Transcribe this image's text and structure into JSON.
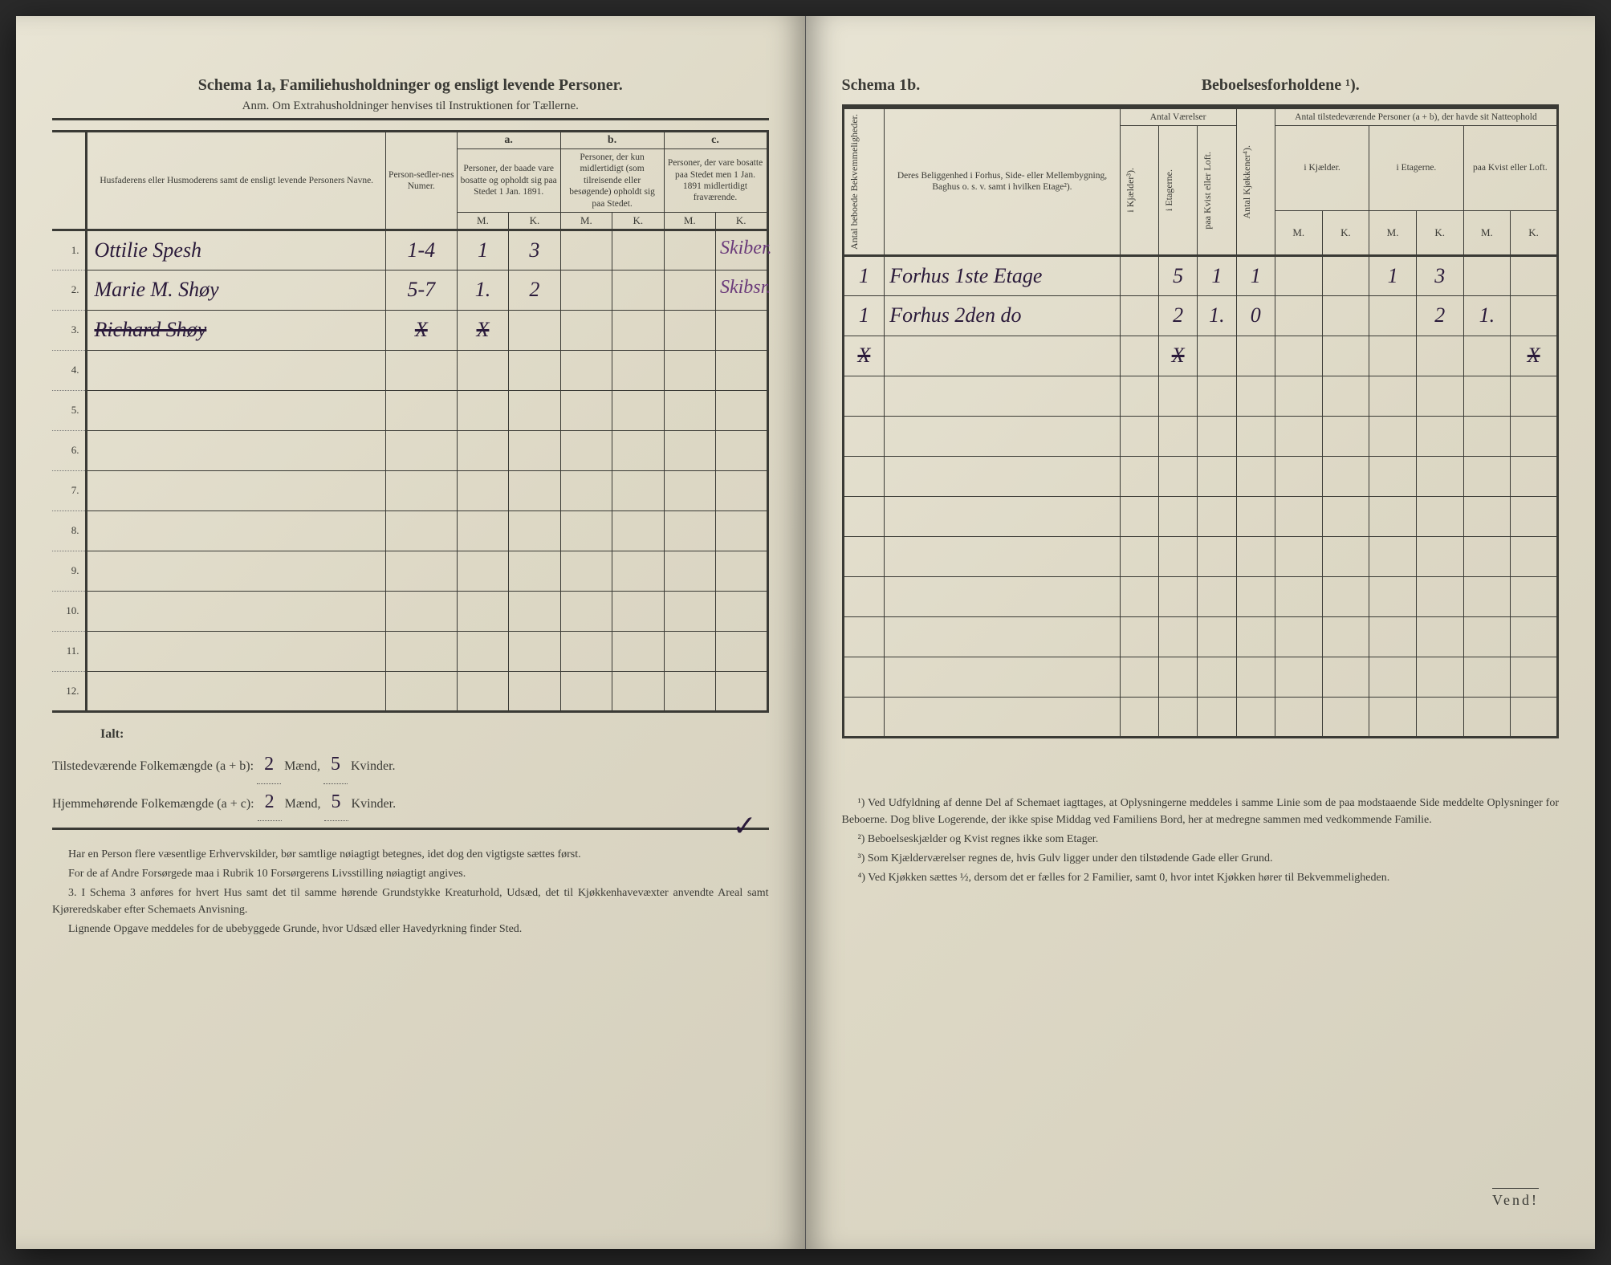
{
  "left": {
    "title": "Schema 1a, Familiehusholdninger og ensligt levende Personer.",
    "subtitle": "Anm. Om Extrahusholdninger henvises til Instruktionen for Tællerne.",
    "headers": {
      "names": "Husfaderens eller Husmoderens samt de ensligt levende Personers Navne.",
      "persNum": "Person-sedler-nes Numer.",
      "a_label": "a.",
      "a_text": "Personer, der baade vare bosatte og opholdt sig paa Stedet 1 Jan. 1891.",
      "b_label": "b.",
      "b_text": "Personer, der kun midlertidigt (som tilreisende eller besøgende) opholdt sig paa Stedet.",
      "c_label": "c.",
      "c_text": "Personer, der vare bosatte paa Stedet men 1 Jan. 1891 midlertidigt fraværende.",
      "M": "M.",
      "K": "K."
    },
    "rows": [
      {
        "n": "1.",
        "name": "Ottilie Spesh",
        "num": "1-4",
        "aM": "1",
        "aK": "3",
        "bM": "",
        "bK": "",
        "cM": "",
        "cK": "",
        "note": "Skiber.",
        "struck": false
      },
      {
        "n": "2.",
        "name": "Marie M. Shøy",
        "num": "5-7",
        "aM": "1.",
        "aK": "2",
        "bM": "",
        "bK": "",
        "cM": "",
        "cK": "",
        "note": "Skibsr.",
        "struck": false
      },
      {
        "n": "3.",
        "name": "Richard Shøy",
        "num": "X",
        "aM": "X",
        "aK": "",
        "bM": "",
        "bK": "",
        "cM": "",
        "cK": "",
        "note": "",
        "struck": true
      },
      {
        "n": "4.",
        "name": "",
        "num": "",
        "aM": "",
        "aK": "",
        "bM": "",
        "bK": "",
        "cM": "",
        "cK": "",
        "note": "",
        "struck": false
      },
      {
        "n": "5.",
        "name": "",
        "num": "",
        "aM": "",
        "aK": "",
        "bM": "",
        "bK": "",
        "cM": "",
        "cK": "",
        "note": "",
        "struck": false
      },
      {
        "n": "6.",
        "name": "",
        "num": "",
        "aM": "",
        "aK": "",
        "bM": "",
        "bK": "",
        "cM": "",
        "cK": "",
        "note": "",
        "struck": false
      },
      {
        "n": "7.",
        "name": "",
        "num": "",
        "aM": "",
        "aK": "",
        "bM": "",
        "bK": "",
        "cM": "",
        "cK": "",
        "note": "",
        "struck": false
      },
      {
        "n": "8.",
        "name": "",
        "num": "",
        "aM": "",
        "aK": "",
        "bM": "",
        "bK": "",
        "cM": "",
        "cK": "",
        "note": "",
        "struck": false
      },
      {
        "n": "9.",
        "name": "",
        "num": "",
        "aM": "",
        "aK": "",
        "bM": "",
        "bK": "",
        "cM": "",
        "cK": "",
        "note": "",
        "struck": false
      },
      {
        "n": "10.",
        "name": "",
        "num": "",
        "aM": "",
        "aK": "",
        "bM": "",
        "bK": "",
        "cM": "",
        "cK": "",
        "note": "",
        "struck": false
      },
      {
        "n": "11.",
        "name": "",
        "num": "",
        "aM": "",
        "aK": "",
        "bM": "",
        "bK": "",
        "cM": "",
        "cK": "",
        "note": "",
        "struck": false
      },
      {
        "n": "12.",
        "name": "",
        "num": "",
        "aM": "",
        "aK": "",
        "bM": "",
        "bK": "",
        "cM": "",
        "cK": "",
        "note": "",
        "struck": false
      }
    ],
    "summary": {
      "ialt": "Ialt:",
      "line1_label": "Tilstedeværende Folkemængde (a + b):",
      "line1_m": "2",
      "line1_mLabel": "Mænd,",
      "line1_k": "5",
      "line1_kLabel": "Kvinder.",
      "line2_label": "Hjemmehørende Folkemængde (a + c):",
      "line2_m": "2",
      "line2_mLabel": "Mænd,",
      "line2_k": "5",
      "line2_kLabel": "Kvinder."
    },
    "footnotes": [
      "Har en Person flere væsentlige Erhvervskilder, bør samtlige nøiagtigt betegnes, idet dog den vigtigste sættes først.",
      "For de af Andre Forsørgede maa i Rubrik 10 Forsørgerens Livsstilling nøiagtigt angives.",
      "3. I Schema 3 anføres for hvert Hus samt det til samme hørende Grundstykke Kreaturhold, Udsæd, det til Kjøkkenhavevæxter anvendte Areal samt Kjøreredskaber efter Schemaets Anvisning.",
      "Lignende Opgave meddeles for de ubebyggede Grunde, hvor Udsæd eller Havedyrkning finder Sted."
    ]
  },
  "right": {
    "title_a": "Schema 1b.",
    "title_b": "Beboelsesforholdene ¹).",
    "headers": {
      "antalBekv": "Antal beboede Bekvemmeligheder.",
      "beligg": "Deres Beliggenhed i Forhus, Side- eller Mellembygning, Baghus o. s. v. samt i hvilken Etage²).",
      "antalVaer": "Antal Værelser",
      "iKjaelder": "i Kjælder³).",
      "iEtagerne": "i Etagerne.",
      "paaKvist": "paa Kvist eller Loft.",
      "antalKjok": "Antal Kjøkkener⁴).",
      "antalTilst": "Antal tilstedeværende Personer (a + b), der havde sit Natteophold",
      "iKjaelder2": "i Kjælder.",
      "iEtagerne2": "i Etagerne.",
      "paaKvist2": "paa Kvist eller Loft.",
      "M": "M.",
      "K": "K."
    },
    "rows": [
      {
        "bekv": "1",
        "beligg": "Forhus 1ste Etage",
        "kj": "",
        "et": "5",
        "kv": "1",
        "kjok": "1",
        "km": "",
        "kk": "",
        "em": "1",
        "ek": "3",
        "lm": "",
        "lk": ""
      },
      {
        "bekv": "1",
        "beligg": "Forhus 2den do",
        "kj": "",
        "et": "2",
        "kv": "1.",
        "kjok": "0",
        "km": "",
        "kk": "",
        "em": "",
        "ek": "2",
        "lm": "1.",
        "lk": ""
      },
      {
        "bekv": "X",
        "beligg": "",
        "kj": "",
        "et": "X",
        "kv": "",
        "kjok": "",
        "km": "",
        "kk": "",
        "em": "",
        "ek": "",
        "lm": "",
        "lk": "X"
      }
    ],
    "emptyRows": 9,
    "footnotes": [
      "¹) Ved Udfyldning af denne Del af Schemaet iagttages, at Oplysningerne meddeles i samme Linie som de paa modstaaende Side meddelte Oplysninger for Beboerne. Dog blive Logerende, der ikke spise Middag ved Familiens Bord, her at medregne sammen med vedkommende Familie.",
      "²) Beboelseskjælder og Kvist regnes ikke som Etager.",
      "³) Som Kjælderværelser regnes de, hvis Gulv ligger under den tilstødende Gade eller Grund.",
      "⁴) Ved Kjøkken sættes ½, dersom det er fælles for 2 Familier, samt 0, hvor intet Kjøkken hører til Bekvemmeligheden."
    ],
    "vend": "Vend!"
  },
  "style": {
    "paper_bg": "#e0dbc8",
    "ink": "#3a3a35",
    "hand_ink": "#2a1a3a",
    "purple_ink": "#6a3a7a",
    "font_main": "Georgia, Times New Roman, serif",
    "font_hand": "Brush Script MT, cursive",
    "title_size_pt": 15,
    "body_size_pt": 10,
    "hand_size_pt": 20
  }
}
